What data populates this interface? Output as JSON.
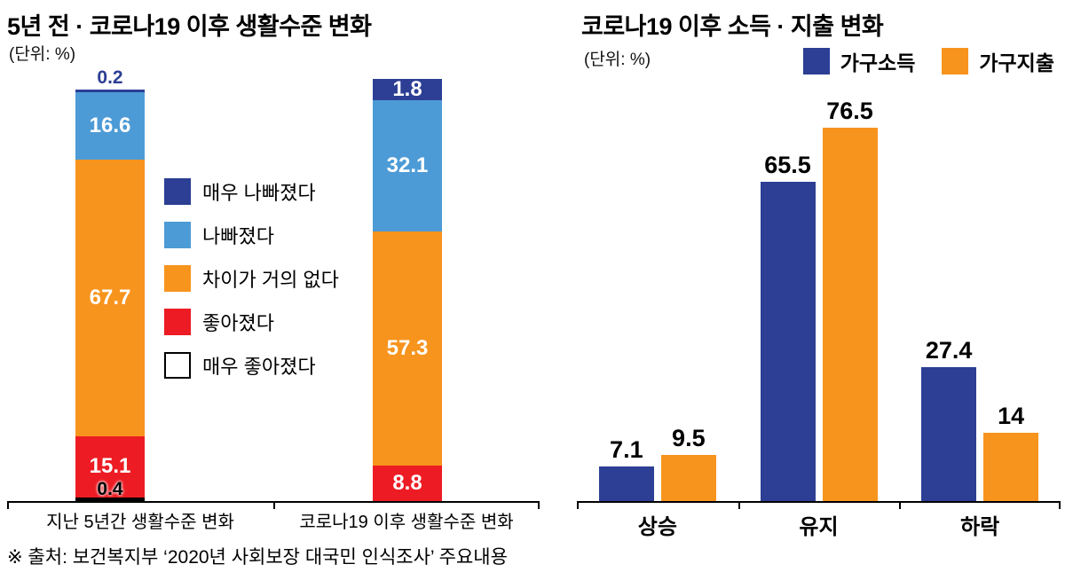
{
  "chart_data": [
    {
      "type": "bar",
      "subtype": "stacked-vertical",
      "title": "5년 전 · 코로나19 이후 생활수준 변화",
      "unit": "(단위: %)",
      "ylim": [
        0,
        100
      ],
      "grid": false,
      "legend_position": "center-between-bars",
      "categories": [
        "지난 5년간 생활수준 변화",
        "코로나19 이후 생활수준 변화"
      ],
      "legend": [
        {
          "label": "매우 나빠졌다",
          "color": "#2c3f94"
        },
        {
          "label": "나빠졌다",
          "color": "#4d9bd6"
        },
        {
          "label": "차이가 거의 없다",
          "color": "#f7941e"
        },
        {
          "label": "좋아졌다",
          "color": "#ed1c24"
        },
        {
          "label": "매우 좋아졌다",
          "color": "#ffffff"
        }
      ],
      "series": [
        {
          "name": "매우 나빠졌다",
          "values": [
            0.2,
            1.8
          ]
        },
        {
          "name": "나빠졌다",
          "values": [
            16.6,
            32.1
          ]
        },
        {
          "name": "차이가 거의 없다",
          "values": [
            67.7,
            57.3
          ]
        },
        {
          "name": "좋아졌다",
          "values": [
            15.1,
            8.8
          ]
        },
        {
          "name": "매우 좋아졌다",
          "values": [
            0.4,
            0
          ]
        }
      ]
    },
    {
      "type": "bar",
      "subtype": "grouped-vertical",
      "title": "코로나19 이후 소득 · 지출 변화",
      "unit": "(단위: %)",
      "ylim": [
        0,
        80
      ],
      "grid": false,
      "legend_position": "top-right",
      "categories": [
        "상승",
        "유지",
        "하락"
      ],
      "legend": [
        {
          "label": "가구소득",
          "color": "#2c3f94"
        },
        {
          "label": "가구지출",
          "color": "#f7941e"
        }
      ],
      "series": [
        {
          "name": "가구소득",
          "values": [
            7.1,
            65.5,
            27.4
          ]
        },
        {
          "name": "가구지출",
          "values": [
            9.5,
            76.5,
            14
          ]
        }
      ]
    }
  ],
  "footer": {
    "source": "※ 출처: 보건복지부 ‘2020년 사회보장 대국민 인식조사’ 주요내용"
  }
}
